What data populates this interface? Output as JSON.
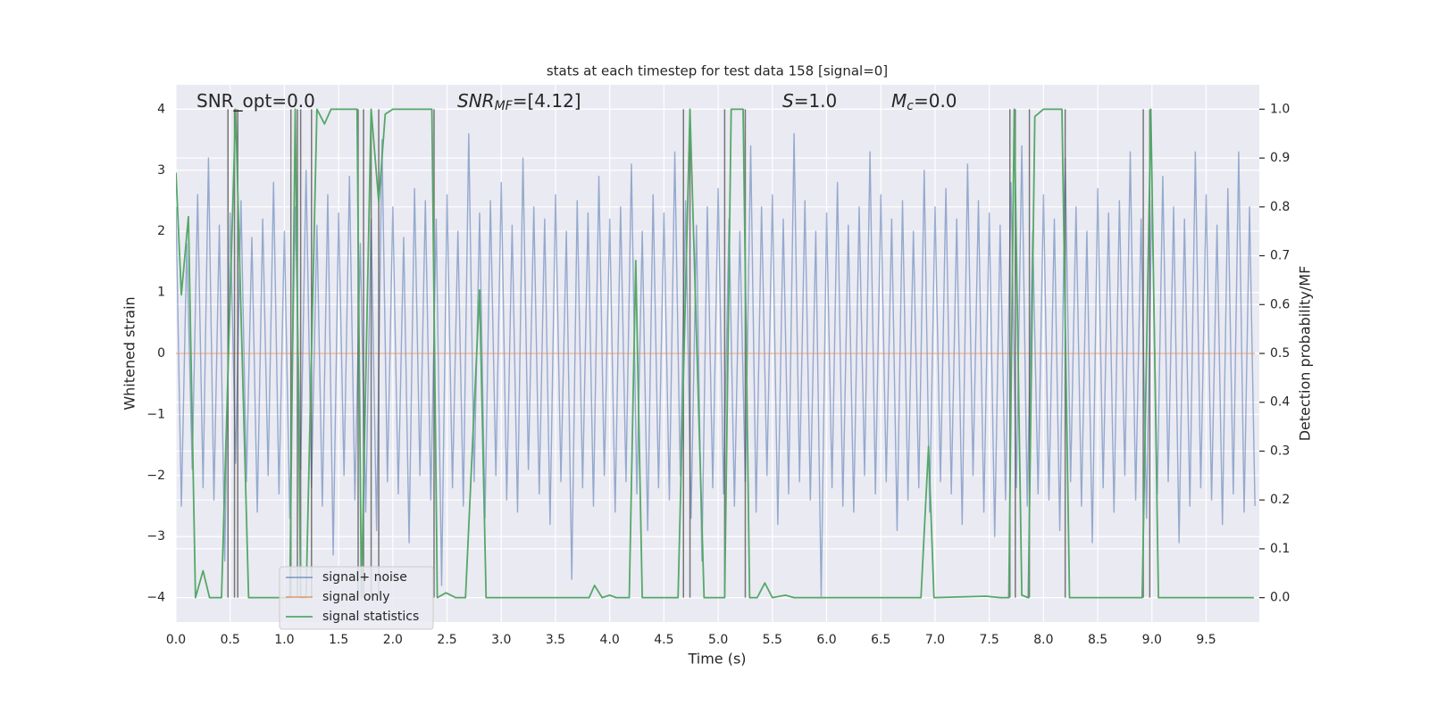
{
  "chart_data": {
    "type": "line",
    "title": "stats at each timestep for test data 158 [signal=0]",
    "xlabel": "Time (s)",
    "ylabel": "Whitened strain",
    "y2label": "Detection probability/MF",
    "grid": true,
    "legend": "lower left",
    "annotations": [
      {
        "text": "SNR_opt=0.0"
      },
      {
        "text": "SNR",
        "sub": "MF",
        "tail": "=[4.12]"
      },
      {
        "text": "S",
        "tail": "=1.0"
      },
      {
        "text": "M",
        "sub": "c",
        "tail": "=0.0"
      }
    ],
    "xlim": [
      0,
      9.99
    ],
    "xticks": [
      {
        "value": 0,
        "label": "0.0"
      },
      0.5,
      {
        "value": 1,
        "label": "1.0"
      },
      1.5,
      {
        "value": 2,
        "label": "2.0"
      },
      2.5,
      {
        "value": 3,
        "label": "3.0"
      },
      3.5,
      {
        "value": 4,
        "label": "4.0"
      },
      4.5,
      {
        "value": 5,
        "label": "5.0"
      },
      5.5,
      {
        "value": 6,
        "label": "6.0"
      },
      6.5,
      {
        "value": 7,
        "label": "7.0"
      },
      7.5,
      {
        "value": 8,
        "label": "8.0"
      },
      8.5,
      {
        "value": 9,
        "label": "9.0"
      },
      9.5
    ],
    "ylim": [
      -4.4,
      4.4
    ],
    "yticks": [
      {
        "value": -4,
        "label": "−4"
      },
      {
        "value": -3,
        "label": "−3"
      },
      {
        "value": -2,
        "label": "−2"
      },
      {
        "value": -1,
        "label": "−1"
      },
      0,
      1,
      2,
      3,
      4
    ],
    "y2lim": [
      -0.05,
      1.05
    ],
    "y2ticks": [
      {
        "value": 0,
        "label": "0.0"
      },
      0.1,
      0.2,
      0.3,
      0.4,
      0.5,
      0.6,
      0.7,
      0.8,
      0.9,
      {
        "value": 1,
        "label": "1.0"
      }
    ],
    "vlines": [
      0.48,
      0.54,
      0.57,
      1.06,
      1.12,
      1.15,
      1.25,
      1.68,
      1.73,
      1.8,
      1.87,
      2.38,
      4.68,
      4.74,
      5.06,
      5.25,
      7.69,
      7.74,
      7.87,
      8.2,
      8.92,
      8.98
    ],
    "vline_ylim": [
      0,
      1
    ],
    "vline_color": "#444444",
    "series": [
      {
        "name": "signal+ noise",
        "color": "#4c72b0",
        "axis": "y",
        "x": [
          0,
          0.05,
          0.1,
          0.15,
          0.2,
          0.25,
          0.3,
          0.35,
          0.4,
          0.45,
          0.5,
          0.55,
          0.6,
          0.65,
          0.7,
          0.75,
          0.8,
          0.85,
          0.9,
          0.95,
          1,
          1.05,
          1.1,
          1.15,
          1.2,
          1.25,
          1.3,
          1.35,
          1.4,
          1.45,
          1.5,
          1.55,
          1.6,
          1.65,
          1.7,
          1.75,
          1.8,
          1.85,
          1.9,
          1.95,
          2,
          2.05,
          2.1,
          2.15,
          2.2,
          2.25,
          2.3,
          2.35,
          2.4,
          2.45,
          2.5,
          2.55,
          2.6,
          2.65,
          2.7,
          2.75,
          2.8,
          2.85,
          2.9,
          2.95,
          3,
          3.05,
          3.1,
          3.15,
          3.2,
          3.25,
          3.3,
          3.35,
          3.4,
          3.45,
          3.5,
          3.55,
          3.6,
          3.65,
          3.7,
          3.75,
          3.8,
          3.85,
          3.9,
          3.95,
          4,
          4.05,
          4.1,
          4.15,
          4.2,
          4.25,
          4.3,
          4.35,
          4.4,
          4.45,
          4.5,
          4.55,
          4.6,
          4.65,
          4.7,
          4.75,
          4.8,
          4.85,
          4.9,
          4.95,
          5,
          5.05,
          5.1,
          5.15,
          5.2,
          5.25,
          5.3,
          5.35,
          5.4,
          5.45,
          5.5,
          5.55,
          5.6,
          5.65,
          5.7,
          5.75,
          5.8,
          5.85,
          5.9,
          5.95,
          6,
          6.05,
          6.1,
          6.15,
          6.2,
          6.25,
          6.3,
          6.35,
          6.4,
          6.45,
          6.5,
          6.55,
          6.6,
          6.65,
          6.7,
          6.75,
          6.8,
          6.85,
          6.9,
          6.95,
          7,
          7.05,
          7.1,
          7.15,
          7.2,
          7.25,
          7.3,
          7.35,
          7.4,
          7.45,
          7.5,
          7.55,
          7.6,
          7.65,
          7.7,
          7.75,
          7.8,
          7.85,
          7.9,
          7.95,
          8,
          8.05,
          8.1,
          8.15,
          8.2,
          8.25,
          8.3,
          8.35,
          8.4,
          8.45,
          8.5,
          8.55,
          8.6,
          8.65,
          8.7,
          8.75,
          8.8,
          8.85,
          8.9,
          8.95,
          9,
          9.05,
          9.1,
          9.15,
          9.2,
          9.25,
          9.3,
          9.35,
          9.4,
          9.45,
          9.5,
          9.55,
          9.6,
          9.65,
          9.7,
          9.75,
          9.8,
          9.85,
          9.9,
          9.95
        ],
        "values": [
          2.4,
          -2.5,
          1.8,
          -1.9,
          2.6,
          -2.2,
          3.2,
          -2.4,
          2.1,
          -3.4,
          2.3,
          -1.8,
          2.5,
          -2.1,
          1.9,
          -2.6,
          2.2,
          -2.0,
          2.8,
          -2.3,
          2.0,
          -2.7,
          2.4,
          -1.9,
          3.0,
          -2.2,
          2.1,
          -2.5,
          2.6,
          -3.3,
          2.3,
          -2.0,
          2.9,
          -2.4,
          1.8,
          -2.6,
          2.2,
          -2.9,
          3.5,
          -2.1,
          2.4,
          -2.3,
          1.9,
          -3.1,
          2.7,
          -2.0,
          2.5,
          -2.4,
          2.2,
          -3.8,
          2.6,
          -2.2,
          2.0,
          -2.5,
          3.6,
          -2.1,
          2.3,
          -2.7,
          2.5,
          -2.0,
          2.8,
          -2.4,
          2.1,
          -2.6,
          3.2,
          -1.9,
          2.4,
          -2.3,
          2.2,
          -2.8,
          2.6,
          -2.1,
          2.0,
          -3.7,
          2.5,
          -2.2,
          2.3,
          -2.5,
          2.9,
          -2.0,
          2.2,
          -2.6,
          2.4,
          -2.1,
          3.1,
          -2.3,
          2.0,
          -2.9,
          2.6,
          -2.2,
          2.3,
          -2.4,
          3.3,
          -2.0,
          2.5,
          -2.7,
          2.1,
          -3.4,
          2.4,
          -2.2,
          2.7,
          -2.3,
          2.2,
          -2.5,
          2.0,
          -2.1,
          3.4,
          -2.6,
          2.4,
          -2.0,
          2.6,
          -2.8,
          2.2,
          -2.3,
          3.6,
          -2.1,
          2.5,
          -2.4,
          2.0,
          -4.0,
          2.3,
          -2.2,
          2.8,
          -2.5,
          2.1,
          -2.6,
          2.4,
          -2.0,
          3.3,
          -2.3,
          2.6,
          -2.1,
          2.2,
          -2.9,
          2.5,
          -2.4,
          2.0,
          -2.2,
          3.0,
          -2.6,
          2.4,
          -2.1,
          2.7,
          -2.3,
          2.2,
          -2.8,
          3.1,
          -2.0,
          2.5,
          -2.6,
          2.3,
          -3.0,
          2.1,
          -2.4,
          2.8,
          -2.2,
          3.4,
          -2.5,
          2.0,
          -2.3,
          2.6,
          -2.4,
          2.2,
          -2.9,
          3.2,
          -2.1,
          2.4,
          -2.5,
          2.0,
          -3.1,
          2.7,
          -2.2,
          2.3,
          -2.6,
          2.5,
          -2.0,
          3.3,
          -2.4,
          2.2,
          -2.7,
          2.5,
          -2.3,
          2.9,
          -2.1,
          2.4,
          -3.1,
          2.2,
          -2.5,
          3.3,
          -2.2,
          2.6,
          -2.4,
          2.1,
          -2.8,
          2.7,
          -2.3,
          3.3,
          -2.6,
          2.4,
          -2.5
        ]
      },
      {
        "name": "signal only",
        "color": "#dd8452",
        "axis": "y",
        "x": [
          0,
          9.95
        ],
        "values": [
          0,
          0
        ]
      },
      {
        "name": "signal statistics",
        "color": "#55a868",
        "axis": "y2",
        "x": [
          0,
          0.05,
          0.115,
          0.18,
          0.25,
          0.31,
          0.42,
          0.55,
          0.67,
          1.05,
          1.1,
          1.15,
          1.2,
          1.3,
          1.37,
          1.43,
          1.67,
          1.71,
          1.8,
          1.87,
          1.93,
          2.0,
          2.36,
          2.41,
          2.49,
          2.58,
          2.67,
          2.8,
          2.86,
          3.81,
          3.86,
          3.93,
          4.0,
          4.06,
          4.18,
          4.24,
          4.3,
          4.63,
          4.74,
          4.87,
          5.06,
          5.12,
          5.23,
          5.29,
          5.36,
          5.43,
          5.5,
          5.62,
          5.7,
          6.87,
          6.94,
          6.99,
          7.47,
          7.6,
          7.68,
          7.73,
          7.8,
          7.86,
          7.92,
          8.0,
          8.17,
          8.24,
          8.91,
          8.99,
          9.06,
          9.94
        ],
        "values": [
          0.87,
          0.62,
          0.78,
          0,
          0.055,
          0,
          0,
          1,
          0,
          0,
          1,
          0,
          0,
          1,
          0.97,
          1,
          1,
          0,
          1,
          0.81,
          0.99,
          1,
          1,
          0,
          0.01,
          0,
          0,
          0.63,
          0,
          0,
          0.025,
          0,
          0.005,
          0,
          0,
          0.69,
          0,
          0,
          1,
          0,
          0,
          1,
          1,
          0,
          0,
          0.03,
          0,
          0.005,
          0,
          0,
          0.31,
          0,
          0.003,
          0,
          0,
          1,
          0.005,
          0,
          0.985,
          1,
          1,
          0,
          0,
          1,
          0,
          0
        ]
      }
    ]
  }
}
